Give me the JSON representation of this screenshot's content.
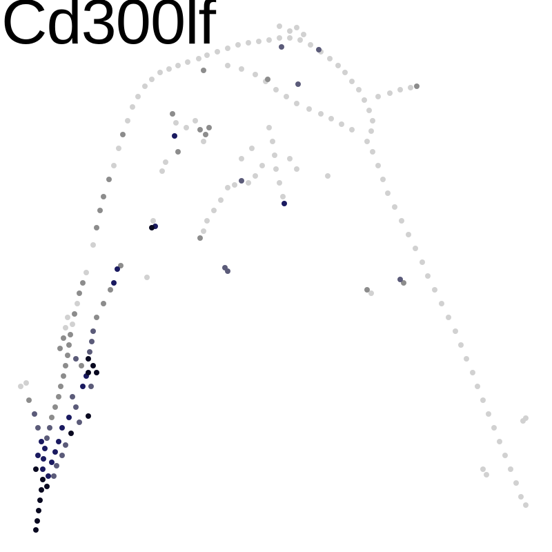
{
  "chart_data": {
    "type": "scatter",
    "title": "Cd300lf",
    "xlabel": "",
    "ylabel": "",
    "axes_visible": false,
    "grid": false,
    "legend": "none",
    "color_scale": {
      "low": "#dcdcdc",
      "mid": "#8c8c8c",
      "high_blue": "#1a1a60",
      "max": "#000000"
    },
    "series": [
      {
        "label": "main-arc",
        "points": [
          [
            135,
            355,
            0.05
          ],
          [
            140,
            330,
            0.35
          ],
          [
            145,
            305,
            0.35
          ],
          [
            150,
            285,
            0.35
          ],
          [
            158,
            260,
            0.35
          ],
          [
            165,
            240,
            0.05
          ],
          [
            172,
            215,
            0.05
          ],
          [
            178,
            195,
            0.35
          ],
          [
            185,
            175,
            0.05
          ],
          [
            192,
            155,
            0.05
          ],
          [
            200,
            140,
            0.05
          ],
          [
            210,
            125,
            0.05
          ],
          [
            220,
            115,
            0.05
          ],
          [
            232,
            105,
            0.05
          ],
          [
            245,
            100,
            0.05
          ],
          [
            258,
            95,
            0.05
          ],
          [
            272,
            90,
            0.05
          ],
          [
            288,
            85,
            0.05
          ],
          [
            300,
            80,
            0.05
          ],
          [
            315,
            75,
            0.05
          ],
          [
            330,
            70,
            0.05
          ],
          [
            345,
            65,
            0.05
          ],
          [
            360,
            62,
            0.05
          ],
          [
            375,
            60,
            0.05
          ],
          [
            390,
            58,
            0.05
          ],
          [
            405,
            55,
            0.05
          ],
          [
            420,
            55,
            0.05
          ],
          [
            435,
            58,
            0.05
          ],
          [
            450,
            65,
            0.05
          ],
          [
            465,
            75,
            0.05
          ],
          [
            478,
            85,
            0.05
          ],
          [
            490,
            95,
            0.05
          ],
          [
            500,
            105,
            0.05
          ],
          [
            510,
            118,
            0.05
          ],
          [
            520,
            130,
            0.05
          ],
          [
            528,
            145,
            0.05
          ],
          [
            535,
            160,
            0.05
          ],
          [
            540,
            175,
            0.05
          ],
          [
            538,
            190,
            0.05
          ],
          [
            532,
            205,
            0.05
          ],
          [
            540,
            220,
            0.05
          ],
          [
            548,
            240,
            0.05
          ],
          [
            555,
            260,
            0.05
          ],
          [
            562,
            280,
            0.05
          ],
          [
            572,
            300,
            0.05
          ],
          [
            582,
            320,
            0.05
          ],
          [
            592,
            340,
            0.05
          ],
          [
            602,
            360,
            0.05
          ],
          [
            612,
            380,
            0.05
          ],
          [
            620,
            400,
            0.05
          ],
          [
            630,
            420,
            0.05
          ],
          [
            640,
            440,
            0.05
          ],
          [
            650,
            460,
            0.05
          ],
          [
            660,
            480,
            0.05
          ],
          [
            668,
            500,
            0.05
          ],
          [
            676,
            520,
            0.05
          ],
          [
            685,
            540,
            0.05
          ],
          [
            692,
            560,
            0.05
          ],
          [
            700,
            580,
            0.05
          ],
          [
            708,
            600,
            0.05
          ],
          [
            716,
            620,
            0.05
          ],
          [
            724,
            640,
            0.05
          ],
          [
            732,
            660,
            0.05
          ],
          [
            740,
            680,
            0.05
          ],
          [
            748,
            700,
            0.05
          ],
          [
            755,
            720,
            0.05
          ],
          [
            762,
            732,
            0.05
          ],
          [
            700,
            680,
            0.05
          ],
          [
            705,
            688,
            0.05
          ],
          [
            758,
            610,
            0.05
          ],
          [
            762,
            606,
            0.05
          ]
        ]
      },
      {
        "label": "top-branch",
        "points": [
          [
            330,
            95,
            0.05
          ],
          [
            350,
            100,
            0.05
          ],
          [
            370,
            108,
            0.05
          ],
          [
            385,
            118,
            0.05
          ],
          [
            400,
            130,
            0.05
          ],
          [
            415,
            140,
            0.05
          ],
          [
            430,
            150,
            0.05
          ],
          [
            448,
            158,
            0.05
          ],
          [
            465,
            165,
            0.05
          ],
          [
            480,
            172,
            0.05
          ],
          [
            495,
            180,
            0.05
          ],
          [
            510,
            188,
            0.05
          ],
          [
            548,
            140,
            0.05
          ],
          [
            565,
            135,
            0.05
          ],
          [
            580,
            130,
            0.05
          ],
          [
            595,
            127,
            0.05
          ],
          [
            604,
            125,
            0.35
          ],
          [
            408,
            68,
            0.5
          ],
          [
            432,
            122,
            0.5
          ],
          [
            462,
            72,
            0.5
          ],
          [
            420,
            45,
            0.05
          ],
          [
            430,
            40,
            0.05
          ],
          [
            405,
            38,
            0.05
          ],
          [
            440,
            50,
            0.05
          ],
          [
            295,
            102,
            0.35
          ],
          [
            388,
            115,
            0.35
          ]
        ]
      },
      {
        "label": "middle-branch",
        "points": [
          [
            390,
            185,
            0.05
          ],
          [
            395,
            205,
            0.05
          ],
          [
            398,
            225,
            0.05
          ],
          [
            400,
            245,
            0.05
          ],
          [
            405,
            265,
            0.05
          ],
          [
            410,
            285,
            0.05
          ],
          [
            412,
            295,
            0.7
          ],
          [
            380,
            240,
            0.05
          ],
          [
            370,
            255,
            0.05
          ],
          [
            360,
            265,
            0.05
          ],
          [
            350,
            262,
            0.5
          ],
          [
            340,
            268,
            0.05
          ],
          [
            330,
            272,
            0.05
          ],
          [
            420,
            230,
            0.05
          ],
          [
            430,
            245,
            0.05
          ],
          [
            250,
            165,
            0.35
          ],
          [
            255,
            178,
            0.05
          ],
          [
            253,
            197,
            0.7
          ],
          [
            258,
            220,
            0.35
          ],
          [
            240,
            235,
            0.05
          ],
          [
            235,
            248,
            0.05
          ],
          [
            290,
            188,
            0.35
          ],
          [
            298,
            195,
            0.35
          ],
          [
            303,
            185,
            0.35
          ],
          [
            295,
            205,
            0.05
          ],
          [
            270,
            185,
            0.05
          ],
          [
            283,
            175,
            0.05
          ],
          [
            300,
            320,
            0.05
          ],
          [
            295,
            335,
            0.05
          ],
          [
            290,
            345,
            0.35
          ],
          [
            222,
            320,
            0.05
          ],
          [
            220,
            330,
            0.9
          ],
          [
            225,
            328,
            0.7
          ],
          [
            326,
            388,
            0.5
          ],
          [
            330,
            393,
            0.5
          ],
          [
            213,
            402,
            0.05
          ],
          [
            320,
            290,
            0.05
          ],
          [
            310,
            305,
            0.05
          ],
          [
            350,
            230,
            0.05
          ],
          [
            365,
            215,
            0.05
          ],
          [
            475,
            255,
            0.05
          ],
          [
            580,
            405,
            0.5
          ],
          [
            585,
            410,
            0.35
          ],
          [
            532,
            420,
            0.35
          ],
          [
            538,
            425,
            0.05
          ]
        ]
      },
      {
        "label": "bottom-left-cluster",
        "points": [
          [
            125,
            395,
            0.05
          ],
          [
            120,
            410,
            0.35
          ],
          [
            115,
            425,
            0.35
          ],
          [
            112,
            440,
            0.05
          ],
          [
            108,
            455,
            0.35
          ],
          [
            105,
            470,
            0.05
          ],
          [
            102,
            485,
            0.35
          ],
          [
            100,
            500,
            0.35
          ],
          [
            98,
            515,
            0.35
          ],
          [
            95,
            530,
            0.35
          ],
          [
            92,
            545,
            0.35
          ],
          [
            88,
            560,
            0.35
          ],
          [
            85,
            575,
            0.35
          ],
          [
            80,
            590,
            0.35
          ],
          [
            75,
            605,
            0.35
          ],
          [
            72,
            620,
            0.5
          ],
          [
            68,
            635,
            0.5
          ],
          [
            65,
            650,
            0.7
          ],
          [
            63,
            665,
            0.7
          ],
          [
            62,
            680,
            0.7
          ],
          [
            62,
            695,
            0.9
          ],
          [
            60,
            710,
            0.9
          ],
          [
            58,
            725,
            0.9
          ],
          [
            56,
            740,
            0.9
          ],
          [
            54,
            755,
            0.9
          ],
          [
            52,
            768,
            0.9
          ],
          [
            110,
            520,
            0.5
          ],
          [
            118,
            530,
            0.35
          ],
          [
            125,
            545,
            0.7
          ],
          [
            128,
            540,
            0.9
          ],
          [
            140,
            540,
            0.9
          ],
          [
            132,
            560,
            0.5
          ],
          [
            120,
            560,
            0.7
          ],
          [
            105,
            575,
            0.5
          ],
          [
            110,
            590,
            0.5
          ],
          [
            100,
            605,
            0.7
          ],
          [
            90,
            620,
            0.7
          ],
          [
            85,
            640,
            0.7
          ],
          [
            80,
            655,
            0.7
          ],
          [
            75,
            670,
            0.7
          ],
          [
            70,
            690,
            0.7
          ],
          [
            68,
            705,
            0.9
          ],
          [
            78,
            690,
            0.5
          ],
          [
            82,
            675,
            0.5
          ],
          [
            90,
            660,
            0.5
          ],
          [
            95,
            645,
            0.5
          ],
          [
            103,
            628,
            0.9
          ],
          [
            115,
            612,
            0.5
          ],
          [
            128,
            603,
            0.9
          ],
          [
            38,
            555,
            0.05
          ],
          [
            30,
            560,
            0.05
          ],
          [
            42,
            580,
            0.35
          ],
          [
            50,
            600,
            0.5
          ],
          [
            55,
            620,
            0.5
          ],
          [
            60,
            640,
            0.7
          ],
          [
            55,
            660,
            0.7
          ],
          [
            52,
            680,
            0.9
          ],
          [
            165,
            410,
            0.7
          ],
          [
            170,
            390,
            0.7
          ],
          [
            175,
            385,
            0.35
          ],
          [
            160,
            420,
            0.35
          ],
          [
            150,
            440,
            0.35
          ],
          [
            140,
            460,
            0.35
          ],
          [
            135,
            480,
            0.5
          ],
          [
            133,
            495,
            0.5
          ],
          [
            130,
            510,
            0.5
          ],
          [
            128,
            520,
            0.9
          ],
          [
            135,
            530,
            0.9
          ],
          [
            95,
            475,
            0.05
          ],
          [
            98,
            460,
            0.05
          ],
          [
            92,
            490,
            0.35
          ],
          [
            87,
            505,
            0.35
          ]
        ]
      }
    ],
    "xlim": [
      0,
      800
    ],
    "ylim": [
      0,
      800
    ]
  }
}
